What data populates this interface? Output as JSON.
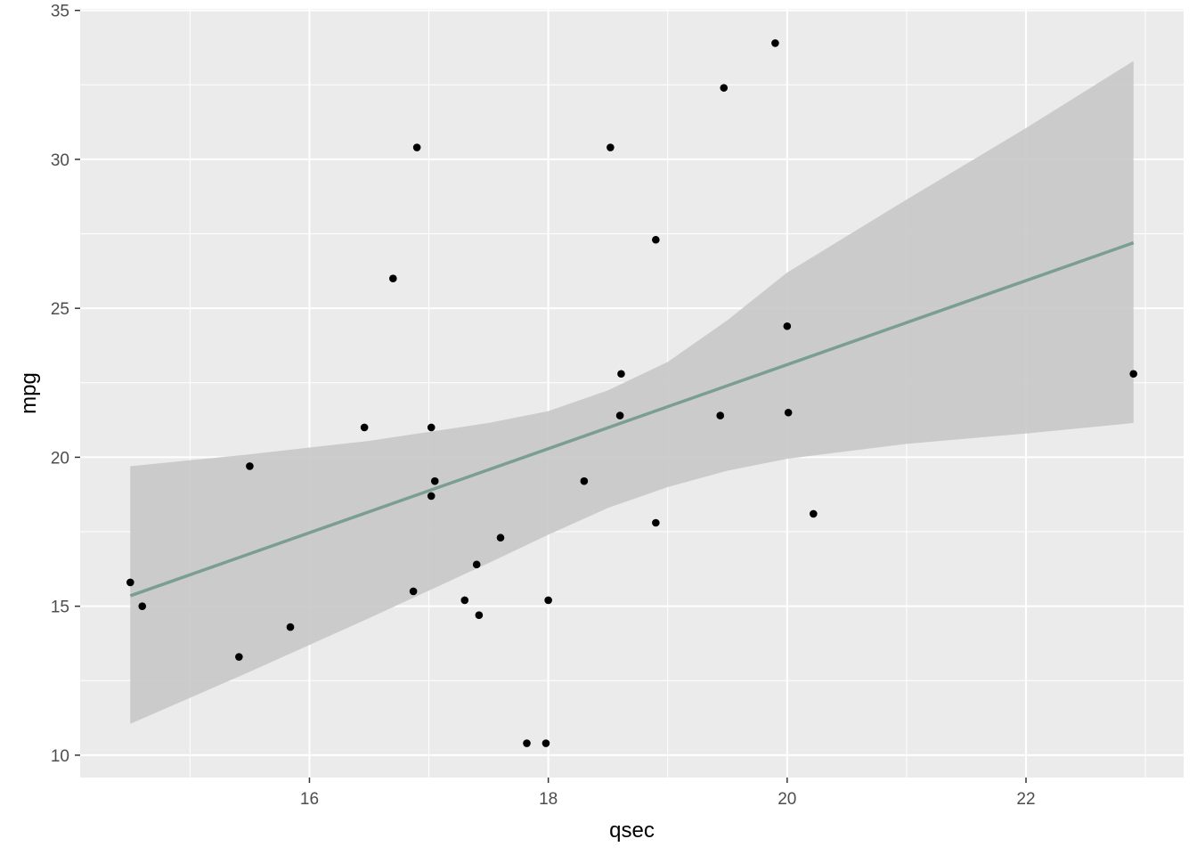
{
  "chart_data": {
    "type": "scatter",
    "title": "",
    "xlabel": "qsec",
    "ylabel": "mpg",
    "xlim": [
      14.08,
      23.32
    ],
    "ylim": [
      9.25,
      35.05
    ],
    "x_ticks": [
      16,
      18,
      20,
      22
    ],
    "y_ticks": [
      10,
      15,
      20,
      25,
      30,
      35
    ],
    "grid": true,
    "legend": "none",
    "colors": {
      "panel": "#ebebeb",
      "grid": "#ffffff",
      "point": "#000000",
      "line": "#7a9e92",
      "ribbon": "#c8c8c8"
    },
    "points": [
      {
        "x": 16.46,
        "y": 21.0
      },
      {
        "x": 17.02,
        "y": 21.0
      },
      {
        "x": 18.61,
        "y": 22.8
      },
      {
        "x": 19.44,
        "y": 21.4
      },
      {
        "x": 17.02,
        "y": 18.7
      },
      {
        "x": 20.22,
        "y": 18.1
      },
      {
        "x": 15.84,
        "y": 14.3
      },
      {
        "x": 20.0,
        "y": 24.4
      },
      {
        "x": 22.9,
        "y": 22.8
      },
      {
        "x": 18.3,
        "y": 19.2
      },
      {
        "x": 18.9,
        "y": 17.8
      },
      {
        "x": 17.4,
        "y": 16.4
      },
      {
        "x": 17.6,
        "y": 17.3
      },
      {
        "x": 18.0,
        "y": 15.2
      },
      {
        "x": 17.98,
        "y": 10.4
      },
      {
        "x": 17.82,
        "y": 10.4
      },
      {
        "x": 17.42,
        "y": 14.7
      },
      {
        "x": 19.47,
        "y": 32.4
      },
      {
        "x": 18.52,
        "y": 30.4
      },
      {
        "x": 19.9,
        "y": 33.9
      },
      {
        "x": 20.01,
        "y": 21.5
      },
      {
        "x": 16.87,
        "y": 15.5
      },
      {
        "x": 17.3,
        "y": 15.2
      },
      {
        "x": 15.41,
        "y": 13.3
      },
      {
        "x": 17.05,
        "y": 19.2
      },
      {
        "x": 18.9,
        "y": 27.3
      },
      {
        "x": 16.7,
        "y": 26.0
      },
      {
        "x": 16.9,
        "y": 30.4
      },
      {
        "x": 14.5,
        "y": 15.8
      },
      {
        "x": 15.5,
        "y": 19.7
      },
      {
        "x": 14.6,
        "y": 15.0
      },
      {
        "x": 18.6,
        "y": 21.4
      }
    ],
    "fit_line": {
      "x": [
        14.5,
        22.9
      ],
      "y": [
        15.35,
        27.2
      ]
    },
    "confidence_band": {
      "x": [
        14.5,
        15.5,
        16.5,
        17.5,
        18.0,
        18.5,
        19.0,
        19.5,
        20.0,
        21.0,
        22.0,
        22.9
      ],
      "lower": [
        11.05,
        12.8,
        14.6,
        16.45,
        17.4,
        18.3,
        19.0,
        19.55,
        19.95,
        20.45,
        20.8,
        21.15
      ],
      "upper": [
        19.7,
        20.1,
        20.55,
        21.15,
        21.55,
        22.25,
        23.2,
        24.6,
        26.2,
        28.65,
        31.05,
        33.3
      ]
    }
  }
}
